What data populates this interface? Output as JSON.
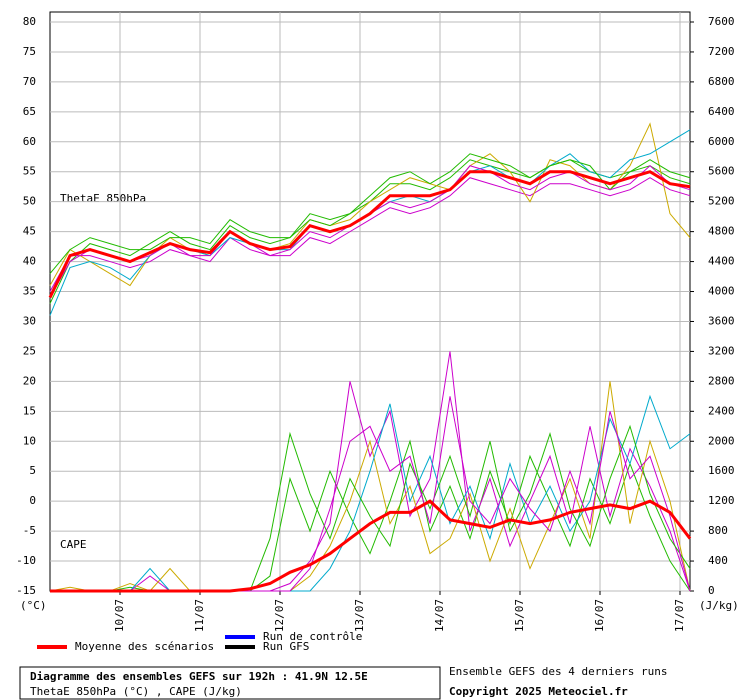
{
  "chart_data": {
    "type": "line",
    "thetae_label": "ThetaE 850hPa",
    "cape_label": "CAPE",
    "y_unit": "(°C)",
    "y2_unit": "(J/kg)",
    "footer_title": "Diagramme des ensembles GEFS sur 192h : 41.9N 12.5E",
    "footer_subtitle": "ThetaE 850hPa (°C) , CAPE (J/kg)",
    "footer_right": "Ensemble GEFS des 4 derniers runs",
    "copyright": "Copyright 2025 Meteociel.fr",
    "grid": true,
    "xlim": [
      0,
      192
    ],
    "xticks": [
      {
        "value": 21,
        "label": "10/07"
      },
      {
        "value": 45,
        "label": "11/07"
      },
      {
        "value": 69,
        "label": "12/07"
      },
      {
        "value": 93,
        "label": "13/07"
      },
      {
        "value": 117,
        "label": "14/07"
      },
      {
        "value": 141,
        "label": "15/07"
      },
      {
        "value": 165,
        "label": "16/07"
      },
      {
        "value": 189,
        "label": "17/07"
      }
    ],
    "ylim": [
      -15,
      80
    ],
    "yticks": [
      -15,
      -10,
      -5,
      0,
      5,
      10,
      15,
      20,
      25,
      30,
      35,
      40,
      45,
      50,
      55,
      60,
      65,
      70,
      75,
      80
    ],
    "y2lim": [
      0,
      7600
    ],
    "y2ticks": [
      0,
      400,
      800,
      1200,
      1600,
      2000,
      2400,
      2800,
      3200,
      3600,
      4000,
      4400,
      4800,
      5200,
      5600,
      6000,
      6400,
      6800,
      7200,
      7600
    ],
    "legend": [
      {
        "name": "Moyenne des scénarios",
        "color": "#ff0000"
      },
      {
        "name": "Run de contrôle",
        "color": "#0000ff"
      },
      {
        "name": "Run GFS",
        "color": "#000000"
      }
    ],
    "x": [
      0,
      6,
      12,
      18,
      24,
      30,
      36,
      42,
      48,
      54,
      60,
      66,
      72,
      78,
      84,
      90,
      96,
      102,
      108,
      114,
      120,
      126,
      132,
      138,
      144,
      150,
      156,
      162,
      168,
      174,
      180,
      186,
      192
    ],
    "members": [
      {
        "color": "#22bb00",
        "values": [
          33,
          40,
          43,
          42,
          41,
          43,
          45,
          43,
          42,
          46,
          44,
          43,
          44,
          48,
          47,
          48,
          50,
          53,
          53,
          52,
          54,
          57,
          56,
          55,
          54,
          56,
          57,
          55,
          54,
          55,
          56,
          54,
          53
        ]
      },
      {
        "color": "#cc00cc",
        "values": [
          35,
          41,
          41,
          40,
          39,
          40,
          42,
          41,
          40,
          44,
          42,
          41,
          41,
          44,
          43,
          45,
          47,
          49,
          48,
          49,
          51,
          54,
          53,
          52,
          51,
          53,
          53,
          52,
          51,
          52,
          54,
          52,
          51
        ]
      },
      {
        "color": "#ccaa00",
        "values": [
          36,
          42,
          40,
          38,
          36,
          41,
          44,
          42,
          41,
          45,
          43,
          42,
          43,
          47,
          46,
          47,
          50,
          52,
          54,
          53,
          52,
          56,
          58,
          55,
          50,
          57,
          56,
          53,
          52,
          56,
          63,
          48,
          44
        ]
      },
      {
        "color": "#00aacc",
        "values": [
          31,
          39,
          40,
          39,
          37,
          41,
          43,
          42,
          41,
          44,
          43,
          42,
          42,
          46,
          45,
          46,
          48,
          50,
          51,
          50,
          52,
          55,
          56,
          54,
          53,
          56,
          58,
          55,
          54,
          57,
          58,
          60,
          62
        ]
      },
      {
        "color": "#22bb00",
        "values": [
          38,
          42,
          44,
          43,
          42,
          42,
          44,
          44,
          43,
          47,
          45,
          44,
          44,
          47,
          46,
          48,
          51,
          54,
          55,
          53,
          55,
          58,
          57,
          56,
          54,
          56,
          57,
          56,
          52,
          55,
          57,
          55,
          54
        ]
      },
      {
        "color": "#cc00cc",
        "values": [
          34,
          40,
          42,
          41,
          40,
          41,
          43,
          41,
          41,
          45,
          43,
          41,
          42,
          45,
          44,
          46,
          48,
          50,
          49,
          50,
          52,
          56,
          55,
          53,
          52,
          54,
          55,
          53,
          52,
          53,
          56,
          53,
          52
        ]
      },
      {
        "color": "#22bb00",
        "axis": "y2",
        "values": [
          0,
          0,
          0,
          0,
          50,
          0,
          0,
          0,
          0,
          0,
          0,
          200,
          1500,
          800,
          1600,
          1000,
          500,
          1200,
          2000,
          800,
          1400,
          700,
          1600,
          900,
          1800,
          1200,
          600,
          1500,
          900,
          1700,
          1000,
          400,
          0
        ]
      },
      {
        "color": "#cc00cc",
        "axis": "y2",
        "values": [
          0,
          0,
          0,
          0,
          0,
          200,
          0,
          0,
          0,
          0,
          0,
          0,
          100,
          400,
          900,
          2800,
          1800,
          2400,
          1000,
          1500,
          3200,
          800,
          1500,
          600,
          1200,
          1800,
          900,
          2200,
          1000,
          1900,
          1400,
          800,
          0
        ]
      },
      {
        "color": "#ccaa00",
        "axis": "y2",
        "values": [
          0,
          50,
          0,
          0,
          100,
          0,
          300,
          0,
          0,
          0,
          0,
          0,
          0,
          200,
          600,
          1200,
          2000,
          900,
          1400,
          500,
          700,
          1300,
          400,
          1100,
          300,
          900,
          1500,
          700,
          2800,
          900,
          2000,
          1200,
          0
        ]
      },
      {
        "color": "#00aacc",
        "axis": "y2",
        "values": [
          0,
          0,
          0,
          0,
          0,
          300,
          0,
          0,
          0,
          0,
          0,
          0,
          0,
          0,
          300,
          800,
          1600,
          2500,
          1200,
          1800,
          900,
          1400,
          700,
          1700,
          900,
          1400,
          800,
          1200,
          2300,
          1700,
          2600,
          1900,
          2100
        ]
      },
      {
        "color": "#22bb00",
        "axis": "y2",
        "values": [
          0,
          0,
          0,
          0,
          0,
          0,
          0,
          0,
          0,
          0,
          0,
          700,
          2100,
          1300,
          700,
          1500,
          1000,
          600,
          1700,
          1100,
          1800,
          1000,
          2000,
          800,
          1300,
          2100,
          1100,
          600,
          1500,
          2200,
          1300,
          700,
          300
        ]
      },
      {
        "color": "#cc00cc",
        "axis": "y2",
        "values": [
          0,
          0,
          0,
          0,
          0,
          0,
          0,
          0,
          0,
          0,
          0,
          0,
          0,
          300,
          1100,
          2000,
          2200,
          1600,
          1800,
          900,
          2600,
          1200,
          900,
          1500,
          1100,
          800,
          1600,
          900,
          2400,
          1500,
          1800,
          1000,
          0
        ]
      }
    ],
    "series": [
      {
        "color": "#ff0000",
        "values": [
          34,
          41,
          42,
          41,
          40,
          41.5,
          43,
          42,
          41.5,
          45,
          43,
          42,
          42.5,
          46,
          45,
          46,
          48,
          51,
          51,
          51,
          52,
          55,
          55,
          54,
          53,
          55,
          55,
          54,
          53,
          54,
          55,
          53,
          52.5
        ]
      },
      {
        "color": "#ff0000",
        "axis": "y2",
        "values": [
          0,
          0,
          0,
          0,
          0,
          0,
          0,
          0,
          0,
          0,
          30,
          100,
          250,
          350,
          500,
          700,
          900,
          1050,
          1050,
          1200,
          950,
          900,
          850,
          950,
          900,
          950,
          1050,
          1100,
          1150,
          1100,
          1200,
          1050,
          700
        ]
      }
    ]
  }
}
